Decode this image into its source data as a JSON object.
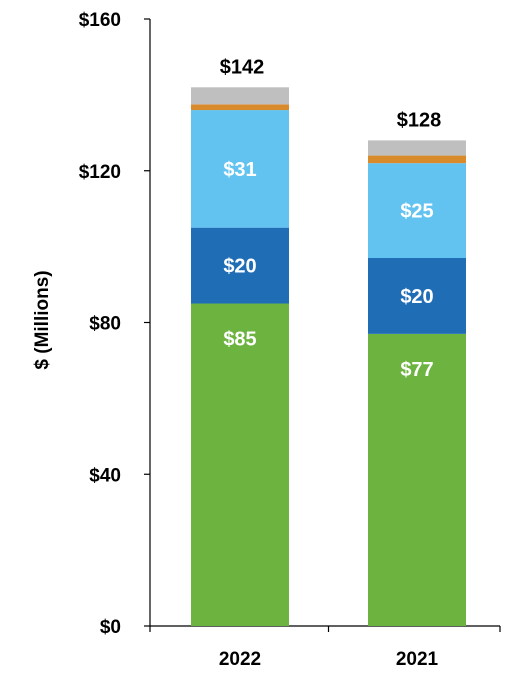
{
  "chart_data": {
    "type": "bar",
    "stacked": true,
    "title": "",
    "xlabel": "",
    "ylabel": "$ (Millions)",
    "ylim": [
      0,
      160
    ],
    "yticks": [
      0,
      40,
      80,
      120,
      160
    ],
    "ytick_labels": [
      "$0",
      "$40",
      "$80",
      "$120",
      "$160"
    ],
    "grid": false,
    "categories": [
      "2022",
      "2021"
    ],
    "totals": [
      142,
      128
    ],
    "total_labels": [
      "$142",
      "$128"
    ],
    "series": [
      {
        "color": "#6cb33f",
        "values": [
          85,
          77
        ],
        "labels": [
          "$85",
          "$77"
        ]
      },
      {
        "color": "#1f6db5",
        "values": [
          20,
          20
        ],
        "labels": [
          "$20",
          "$20"
        ]
      },
      {
        "color": "#63c3f0",
        "values": [
          31,
          25
        ],
        "labels": [
          "$31",
          "$25"
        ]
      },
      {
        "color": "#d98a2b",
        "values": [
          1.5,
          2
        ],
        "labels": [
          "",
          ""
        ]
      },
      {
        "color": "#bfbfbf",
        "values": [
          4.5,
          4
        ],
        "labels": [
          "",
          ""
        ]
      }
    ]
  }
}
